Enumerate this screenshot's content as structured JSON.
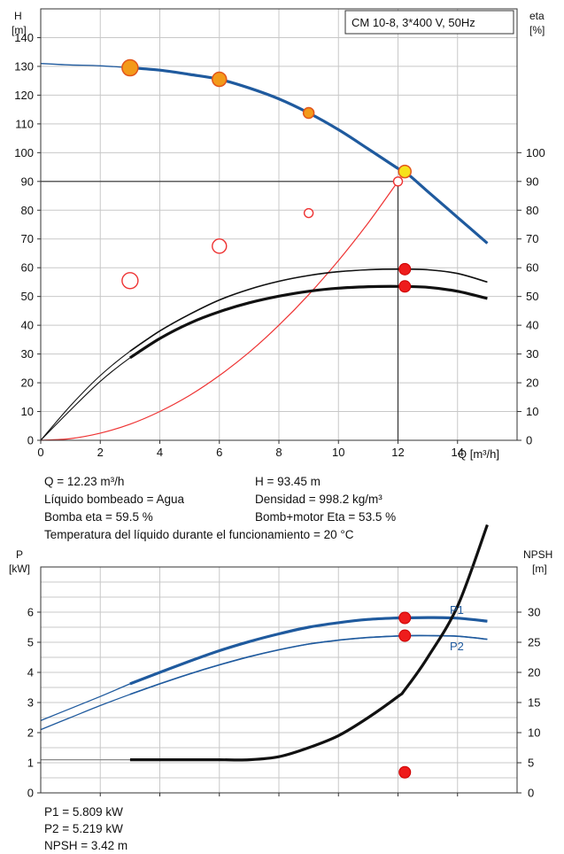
{
  "chart_data": [
    {
      "type": "line",
      "title_box": "CM 10-8, 3*400 V, 50Hz",
      "y_left_label": [
        "H",
        "[m]"
      ],
      "y_right_label": [
        "eta",
        "[%]"
      ],
      "x_label": "Q [m³/h]",
      "xlim": [
        0,
        16
      ],
      "x_ticks": [
        "0",
        "2",
        "4",
        "6",
        "8",
        "10",
        "12",
        "14"
      ],
      "y_left_lim": [
        0,
        150
      ],
      "y_left_ticks": [
        "0",
        "10",
        "20",
        "30",
        "40",
        "50",
        "60",
        "70",
        "80",
        "90",
        "100",
        "110",
        "120",
        "130",
        "140"
      ],
      "y_right_ticks": [
        "0",
        "10",
        "20",
        "30",
        "40",
        "50",
        "60",
        "70",
        "80",
        "90",
        "100"
      ],
      "grid": true,
      "series": [
        {
          "id": "head",
          "color": "#1f5a9e",
          "x": [
            0,
            1,
            2,
            3,
            4,
            5,
            6,
            7,
            8,
            9,
            10,
            11,
            12,
            12.23,
            13,
            14,
            15
          ],
          "y": [
            131,
            130.5,
            130.2,
            129.5,
            128.7,
            127.2,
            125.5,
            122.5,
            118.7,
            113.8,
            108,
            101.3,
            94.5,
            93.45,
            86.5,
            77.5,
            68.5
          ]
        },
        {
          "id": "pump-eta",
          "color": "#111111",
          "x": [
            0,
            1,
            2,
            3,
            4,
            5,
            6,
            7,
            8,
            9,
            10,
            11,
            12,
            13,
            14,
            15
          ],
          "y": [
            0,
            12,
            22.5,
            31,
            38,
            43.8,
            48.8,
            52.5,
            55.3,
            57.3,
            58.6,
            59.3,
            59.5,
            59.3,
            58,
            55
          ]
        },
        {
          "id": "total-eta",
          "color": "#111111",
          "x": [
            0,
            1,
            2,
            3,
            4,
            5,
            6,
            7,
            8,
            9,
            10,
            11,
            12,
            13,
            14,
            15
          ],
          "y": [
            0,
            10.5,
            20.5,
            28.7,
            35.4,
            40.7,
            44.7,
            47.8,
            50.1,
            51.8,
            52.9,
            53.4,
            53.5,
            53.2,
            51.8,
            49.3
          ]
        },
        {
          "id": "system-curve",
          "color": "#ee3333",
          "x": [
            0,
            1,
            2,
            3,
            4,
            5,
            6,
            7,
            8,
            9,
            10,
            11,
            12
          ],
          "y": [
            0,
            0.6,
            2.5,
            5.6,
            10,
            15.6,
            22.5,
            30.6,
            40,
            50.6,
            62.5,
            75.6,
            90
          ]
        }
      ],
      "markers": {
        "head_points": [
          {
            "x": 3,
            "y": 129.5
          },
          {
            "x": 6,
            "y": 125.5
          },
          {
            "x": 9,
            "y": 113.8
          },
          {
            "x": 12.23,
            "y": 93.45
          }
        ],
        "open_circles": [
          {
            "x": 3,
            "y": 55.5
          },
          {
            "x": 6,
            "y": 67.5
          },
          {
            "x": 9,
            "y": 79
          },
          {
            "x": 12,
            "y": 90
          }
        ],
        "eta_points": [
          {
            "x": 12.23,
            "y": 59.5
          },
          {
            "x": 12.23,
            "y": 53.5
          }
        ]
      },
      "operating_point": {
        "q": 12.23,
        "h": 93.45
      }
    },
    {
      "type": "line",
      "y_left_label": [
        "P",
        "[kW]"
      ],
      "y_right_label": [
        "NPSH",
        "[m]"
      ],
      "xlim": [
        0,
        16
      ],
      "y_left_lim": [
        0,
        7.5
      ],
      "y_left_ticks": [
        "0",
        "1",
        "2",
        "3",
        "4",
        "5",
        "6"
      ],
      "y_right_ticks": [
        "0",
        "5",
        "10",
        "15",
        "20",
        "25",
        "30"
      ],
      "grid": true,
      "series": [
        {
          "id": "p1",
          "name": "P1",
          "color": "#1f5a9e",
          "x": [
            0,
            1,
            2,
            3,
            4,
            5,
            6,
            7,
            8,
            9,
            10,
            11,
            12,
            12.23,
            13,
            14,
            15
          ],
          "y": [
            2.4,
            2.8,
            3.2,
            3.62,
            4.0,
            4.37,
            4.72,
            5.02,
            5.28,
            5.5,
            5.65,
            5.76,
            5.808,
            5.809,
            5.82,
            5.8,
            5.7
          ]
        },
        {
          "id": "p2",
          "name": "P2",
          "color": "#1f5a9e",
          "x": [
            0,
            1,
            2,
            3,
            4,
            5,
            6,
            7,
            8,
            9,
            10,
            11,
            12,
            12.23,
            13,
            14,
            15
          ],
          "y": [
            2.1,
            2.5,
            2.9,
            3.27,
            3.62,
            3.95,
            4.25,
            4.52,
            4.75,
            4.94,
            5.07,
            5.16,
            5.21,
            5.219,
            5.22,
            5.2,
            5.1
          ]
        },
        {
          "id": "npsh",
          "color": "#111111",
          "x": [
            0,
            1,
            2,
            3,
            4,
            5,
            6,
            7,
            8,
            9,
            10,
            11,
            12,
            12.23,
            13,
            14,
            15
          ],
          "y": [
            1.1,
            1.1,
            1.1,
            1.1,
            1.1,
            1.1,
            1.1,
            1.1,
            1.2,
            1.5,
            1.9,
            2.5,
            3.2,
            3.42,
            4.5,
            6.2,
            8.9
          ]
        }
      ],
      "markers": [
        {
          "x": 12.23,
          "y": 5.809
        },
        {
          "x": 12.23,
          "y": 5.219
        },
        {
          "x": 12.23,
          "y": 0.684
        }
      ]
    }
  ],
  "results_top": {
    "q": "Q = 12.23 m³/h",
    "h": "H = 93.45 m",
    "liquid": "Líquido bombeado = Agua",
    "density": "Densidad = 998.2 kg/m³",
    "pump_eta": "Bomba eta = 59.5 %",
    "total_eta": "Bomb+motor Eta = 53.5 %",
    "temperature": "Temperatura del líquido durante el funcionamiento = 20 °C"
  },
  "results_bottom": {
    "p1": "P1 = 5.809 kW",
    "p2": "P2 = 5.219 kW",
    "npsh": "NPSH = 3.42 m"
  }
}
